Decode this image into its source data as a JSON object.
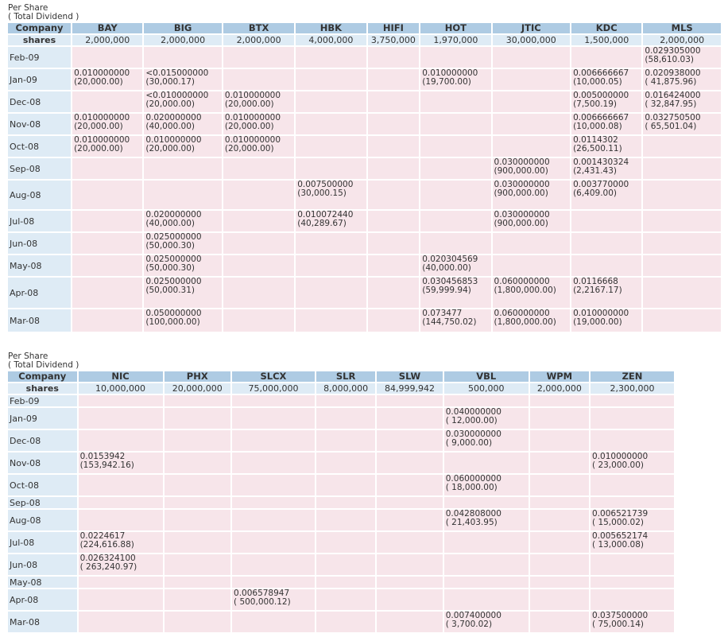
{
  "tables": [
    {
      "caption_line1": "Per Share",
      "caption_line2": "( Total Dividend )",
      "company_label": "Company",
      "shares_label": "shares",
      "companies": [
        "BAY",
        "BIG",
        "BTX",
        "HBK",
        "HIFI",
        "HOT",
        "JTIC",
        "KDC",
        "MLS"
      ],
      "shares": [
        "2,000,000",
        "2,000,000",
        "2,000,000",
        "4,000,000",
        "3,750,000",
        "1,970,000",
        "30,000,000",
        "1,500,000",
        "2,000,000"
      ],
      "rows": [
        {
          "month": "Feb-09",
          "cells": [
            null,
            null,
            null,
            null,
            null,
            null,
            null,
            null,
            [
              "0.029305000",
              "(58,610.03)"
            ]
          ]
        },
        {
          "month": "Jan-09",
          "cells": [
            [
              "0.010000000",
              "(20,000.00)"
            ],
            [
              "<0.015000000",
              "(30,000.17)"
            ],
            null,
            null,
            null,
            [
              "0.010000000",
              "(19,700.00)"
            ],
            null,
            [
              "0.006666667",
              "(10,000.05)"
            ],
            [
              "0.020938000",
              "( 41,875.96)"
            ]
          ]
        },
        {
          "month": "Dec-08",
          "cells": [
            null,
            [
              "<0.010000000",
              "(20,000.00)"
            ],
            [
              "0.010000000",
              "(20,000.00)"
            ],
            null,
            null,
            null,
            null,
            [
              "0.005000000",
              "(7,500.19)"
            ],
            [
              "0.016424000",
              "( 32,847.95)"
            ]
          ]
        },
        {
          "month": "Nov-08",
          "cells": [
            [
              "0.010000000",
              "(20,000.00)"
            ],
            [
              "0.020000000",
              "(40,000.00)"
            ],
            [
              "0.010000000",
              "(20,000.00)"
            ],
            null,
            null,
            null,
            null,
            [
              "0.006666667",
              "(10,000.08)"
            ],
            [
              "0.032750500",
              "( 65,501.04)"
            ]
          ]
        },
        {
          "month": "Oct-08",
          "cells": [
            [
              "0.010000000",
              "(20,000.00)"
            ],
            [
              "0.010000000",
              "(20,000.00)"
            ],
            [
              "0.010000000",
              "(20,000.00)"
            ],
            null,
            null,
            null,
            null,
            [
              "0.0114302",
              "(26,500.11)"
            ],
            null
          ]
        },
        {
          "month": "Sep-08",
          "cells": [
            null,
            null,
            null,
            null,
            null,
            null,
            [
              "0.030000000",
              "(900,000.00)"
            ],
            [
              "0.001430324",
              "(2,431.43)"
            ],
            null
          ]
        },
        {
          "month": "Aug-08",
          "cells": [
            null,
            null,
            null,
            [
              "0.007500000",
              "(30,000.15)"
            ],
            null,
            null,
            [
              "0.030000000",
              "(900,000.00)"
            ],
            [
              "0.003770000",
              "(6,409.00)"
            ],
            null
          ]
        },
        {
          "month": "Jul-08",
          "cells": [
            null,
            [
              "0.020000000",
              "(40,000.00)"
            ],
            null,
            [
              "0.010072440",
              "(40,289.67)"
            ],
            null,
            null,
            [
              "0.030000000",
              "(900,000.00)"
            ],
            null,
            null
          ]
        },
        {
          "month": "Jun-08",
          "cells": [
            null,
            [
              "0.025000000",
              "(50,000.30)"
            ],
            null,
            null,
            null,
            null,
            null,
            null,
            null
          ]
        },
        {
          "month": "May-08",
          "cells": [
            null,
            [
              "0.025000000",
              "(50,000.30)"
            ],
            null,
            null,
            null,
            [
              "0.020304569",
              "(40,000.00)"
            ],
            null,
            null,
            null
          ]
        },
        {
          "month": "Apr-08",
          "cells": [
            null,
            [
              "0.025000000",
              "(50,000.31)"
            ],
            null,
            null,
            null,
            [
              "0.030456853",
              "(59,999.94)"
            ],
            [
              "0.060000000",
              "(1,800,000.00)"
            ],
            [
              "0.0116668",
              "(2,2167.17)"
            ],
            null
          ]
        },
        {
          "month": "Mar-08",
          "cells": [
            null,
            [
              "0.050000000",
              "(100,000.00)"
            ],
            null,
            null,
            null,
            [
              "0.073477",
              "(144,750.02)"
            ],
            [
              "0.060000000",
              "(1,800,000.00)"
            ],
            [
              "0.010000000",
              "(19,000.00)"
            ],
            null
          ]
        }
      ]
    },
    {
      "caption_line1": "Per Share",
      "caption_line2": "( Total Dividend )",
      "company_label": "Company",
      "shares_label": "shares",
      "companies": [
        "NIC",
        "PHX",
        "SLCX",
        "SLR",
        "SLW",
        "VBL",
        "WPM",
        "ZEN"
      ],
      "shares": [
        "10,000,000",
        "20,000,000",
        "75,000,000",
        "8,000,000",
        "84,999,942",
        "500,000",
        "2,000,000",
        "2,300,000"
      ],
      "rows": [
        {
          "month": "Feb-09",
          "cells": [
            null,
            null,
            null,
            null,
            null,
            null,
            null,
            null
          ]
        },
        {
          "month": "Jan-09",
          "cells": [
            null,
            null,
            null,
            null,
            null,
            [
              "0.040000000",
              "( 12,000.00)"
            ],
            null,
            null
          ]
        },
        {
          "month": "Dec-08",
          "cells": [
            null,
            null,
            null,
            null,
            null,
            [
              "0.030000000",
              "( 9,000.00)"
            ],
            null,
            null
          ]
        },
        {
          "month": "Nov-08",
          "cells": [
            [
              "0.0153942",
              "(153,942.16)"
            ],
            null,
            null,
            null,
            null,
            null,
            null,
            [
              "0.010000000",
              "( 23,000.00)"
            ]
          ]
        },
        {
          "month": "Oct-08",
          "cells": [
            null,
            null,
            null,
            null,
            null,
            [
              "0.060000000",
              "( 18,000.00)"
            ],
            null,
            null
          ]
        },
        {
          "month": "Sep-08",
          "cells": [
            null,
            null,
            null,
            null,
            null,
            null,
            null,
            null
          ]
        },
        {
          "month": "Aug-08",
          "cells": [
            null,
            null,
            null,
            null,
            null,
            [
              "0.042808000",
              "( 21,403.95)"
            ],
            null,
            [
              "0.006521739",
              "( 15,000.02)"
            ]
          ]
        },
        {
          "month": "Jul-08",
          "cells": [
            [
              "0.0224617",
              "(224,616.88)"
            ],
            null,
            null,
            null,
            null,
            null,
            null,
            [
              "0.005652174",
              "( 13,000.08)"
            ]
          ]
        },
        {
          "month": "Jun-08",
          "cells": [
            [
              "0.026324100",
              "( 263,240.97)"
            ],
            null,
            null,
            null,
            null,
            null,
            null,
            null
          ]
        },
        {
          "month": "May-08",
          "cells": [
            null,
            null,
            null,
            null,
            null,
            null,
            null,
            null
          ]
        },
        {
          "month": "Apr-08",
          "cells": [
            null,
            null,
            [
              "0.006578947",
              "( 500,000.12)"
            ],
            null,
            null,
            null,
            null,
            null
          ]
        },
        {
          "month": "Mar-08",
          "cells": [
            null,
            null,
            null,
            null,
            null,
            [
              "0.007400000",
              "( 3,700.02)"
            ],
            null,
            [
              "0.037500000",
              "( 75,000.14)"
            ]
          ]
        }
      ]
    }
  ]
}
